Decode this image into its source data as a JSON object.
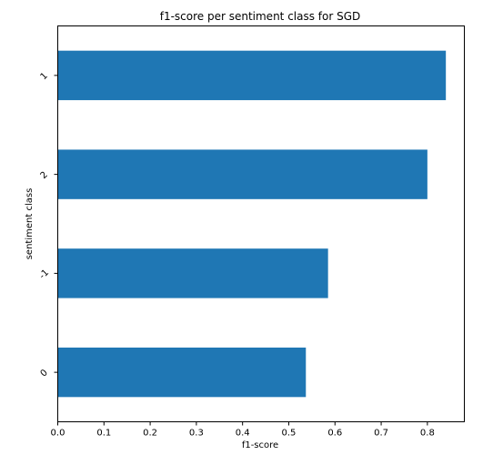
{
  "chart_data": {
    "type": "bar",
    "orientation": "horizontal",
    "title": "f1-score per sentiment class for SGD",
    "xlabel": "f1-score",
    "ylabel": "sentiment class",
    "categories": [
      "1",
      "2",
      "-1",
      "0"
    ],
    "values": [
      0.84,
      0.8,
      0.585,
      0.537
    ],
    "xlim": [
      0,
      0.88
    ],
    "xticks": [
      "0.0",
      "0.1",
      "0.2",
      "0.3",
      "0.4",
      "0.5",
      "0.6",
      "0.7",
      "0.8"
    ],
    "bar_color": "#1f77b4",
    "grid": false,
    "legend": "none"
  }
}
